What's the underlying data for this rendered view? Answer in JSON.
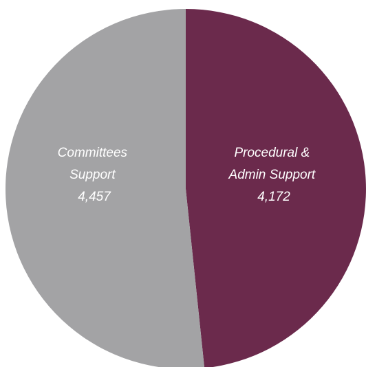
{
  "chart_data": {
    "type": "pie",
    "slices": [
      {
        "label_lines": [
          "Procedural &",
          "Admin Support"
        ],
        "value": 4172,
        "value_label": "4,172",
        "color": "#6b2a4c"
      },
      {
        "label_lines": [
          "Committees",
          "Support"
        ],
        "value": 4457,
        "value_label": "4,457",
        "color": "#a3a3a5"
      }
    ],
    "start_angle_deg": 0,
    "direction": "clockwise"
  }
}
